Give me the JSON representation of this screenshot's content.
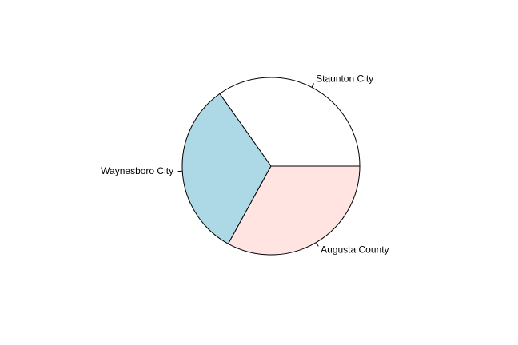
{
  "chart_data": {
    "type": "pie",
    "title": "",
    "start_angle_deg": 0,
    "direction": "counterclockwise",
    "slices": [
      {
        "label": "Staunton City",
        "value": 0.348,
        "color": "#FFFFFF"
      },
      {
        "label": "Waynesboro City",
        "value": 0.322,
        "color": "#ADD8E6"
      },
      {
        "label": "Augusta County",
        "value": 0.33,
        "color": "#FFE4E1"
      }
    ]
  }
}
